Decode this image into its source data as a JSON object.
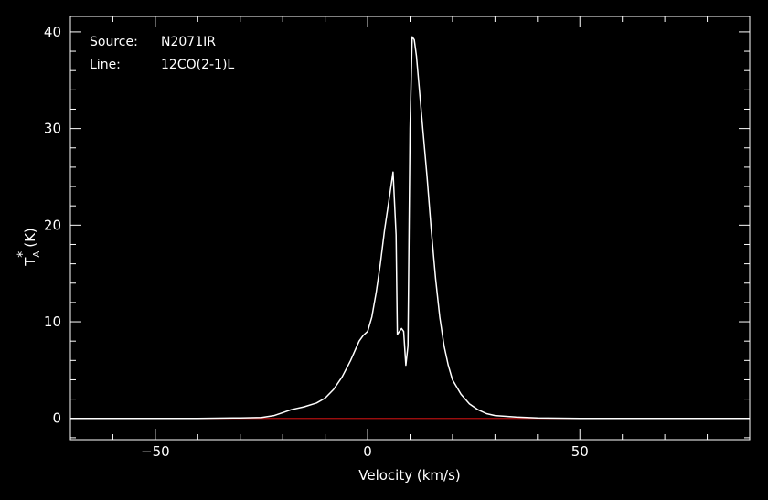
{
  "chart_data": {
    "type": "line",
    "xlabel": "Velocity (km/s)",
    "ylabel": {
      "base": "T",
      "sub": "A",
      "sup": "*",
      "unit": "(K)"
    },
    "xlim": [
      -70,
      90
    ],
    "ylim": [
      -2.2,
      41.6
    ],
    "x_ticks": [
      -50,
      0,
      50
    ],
    "y_ticks": [
      0,
      10,
      20,
      30,
      40
    ],
    "annotations": [
      {
        "key": "Source:",
        "value": "N2071IR"
      },
      {
        "key": "Line:",
        "value": "12CO(2-1)L"
      }
    ],
    "grid": false,
    "baseline": {
      "y": 0,
      "color": "#b01010"
    },
    "series": [
      {
        "color": "#ffffff",
        "x": [
          -70,
          -40,
          -30,
          -25,
          -22,
          -20,
          -18,
          -15,
          -12,
          -10,
          -8,
          -6,
          -4,
          -2,
          -1,
          0,
          1,
          2,
          3,
          4,
          5,
          6,
          6.7,
          7,
          7.5,
          8,
          8.5,
          9,
          9.5,
          10,
          10.5,
          11,
          11.5,
          12,
          13,
          14,
          15,
          16,
          17,
          18,
          19,
          20,
          22,
          24,
          26,
          28,
          30,
          35,
          40,
          50,
          60,
          70,
          90
        ],
        "y": [
          0,
          0,
          0.05,
          0.1,
          0.3,
          0.6,
          0.9,
          1.2,
          1.6,
          2.1,
          3.0,
          4.3,
          6.0,
          8.0,
          8.6,
          9.0,
          10.5,
          13.0,
          16.0,
          19.5,
          22.5,
          25.5,
          19.0,
          8.7,
          9.0,
          9.3,
          9.0,
          5.5,
          7.5,
          30.0,
          39.5,
          39.2,
          37.5,
          35.0,
          30.0,
          25.0,
          19.5,
          14.5,
          10.5,
          7.5,
          5.5,
          4.0,
          2.5,
          1.5,
          0.9,
          0.5,
          0.3,
          0.15,
          0.05,
          0,
          0,
          0,
          0
        ]
      }
    ]
  }
}
